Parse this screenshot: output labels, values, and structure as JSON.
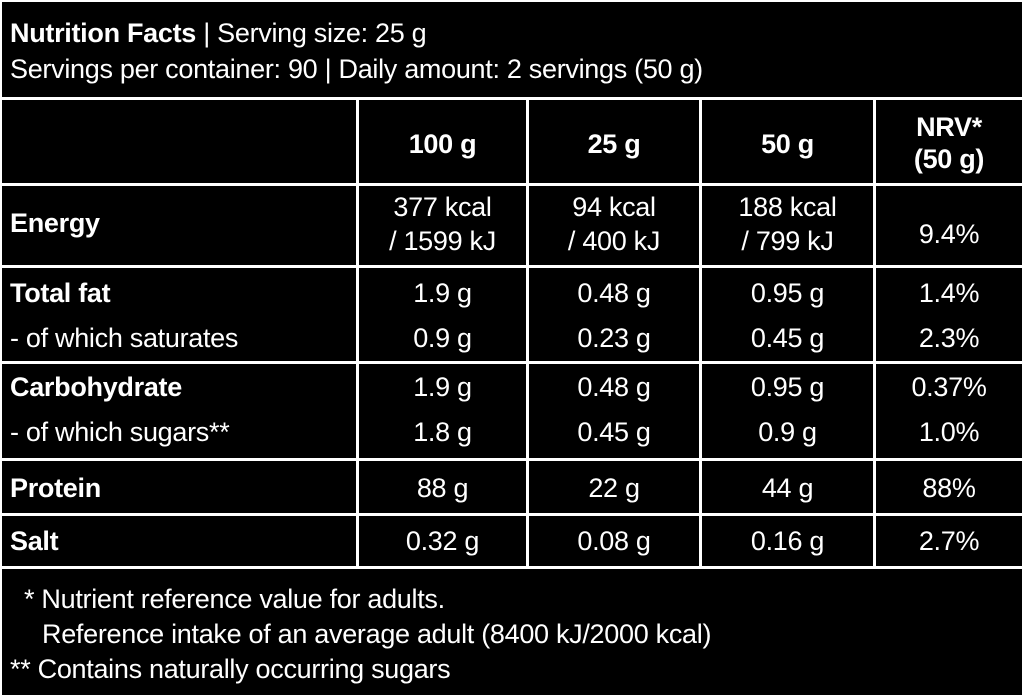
{
  "header": {
    "title": "Nutrition Facts",
    "separator": "|",
    "serving_size": "Serving size: 25 g",
    "line2": "Servings per container: 90 | Daily amount: 2 servings (50 g)"
  },
  "table": {
    "columns": [
      "100 g",
      "25 g",
      "50 g",
      "NRV*",
      "(50 g)"
    ],
    "rows": [
      {
        "label": "Energy",
        "v100": [
          "377 kcal",
          "/ 1599 kJ"
        ],
        "v25": [
          "94 kcal",
          "/ 400 kJ"
        ],
        "v50": [
          "188 kcal",
          "/ 799 kJ"
        ],
        "nrv": "9.4%"
      },
      {
        "label": "Total fat",
        "v100": "1.9 g",
        "v25": "0.48 g",
        "v50": "0.95 g",
        "nrv": "1.4%"
      },
      {
        "label": "- of which saturates",
        "v100": "0.9 g",
        "v25": "0.23 g",
        "v50": "0.45 g",
        "nrv": "2.3%"
      },
      {
        "label": "Carbohydrate",
        "v100": "1.9 g",
        "v25": "0.48 g",
        "v50": "0.95 g",
        "nrv": "0.37%"
      },
      {
        "label": "- of which sugars**",
        "v100": "1.8 g",
        "v25": "0.45 g",
        "v50": "0.9 g",
        "nrv": "1.0%"
      },
      {
        "label": "Protein",
        "v100": "88 g",
        "v25": "22 g",
        "v50": "44 g",
        "nrv": "88%"
      },
      {
        "label": "Salt",
        "v100": "0.32 g",
        "v25": "0.08 g",
        "v50": "0.16 g",
        "nrv": "2.7%"
      }
    ]
  },
  "footnotes": [
    "* Nutrient reference value for adults.",
    "Reference intake of an average adult (8400 kJ/2000 kcal)",
    "** Contains naturally occurring sugars"
  ]
}
